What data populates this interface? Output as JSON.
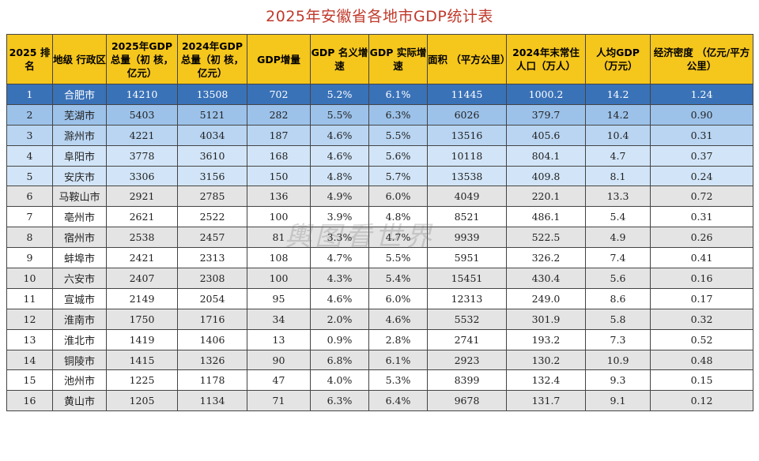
{
  "title": "2025年安徽省各地市GDP统计表",
  "watermark": "輿图看世界",
  "headers": [
    "2025 排名",
    "地级 行政区",
    "2025年GDP 总量（初 核，亿元）",
    "2024年GDP 总量（初 核，亿元）",
    "GDP增量",
    "GDP 名义增速",
    "GDP 实际增速",
    "面积 （平方公里）",
    "2024年末常住 人口（万人）",
    "人均GDP （万元）",
    "经济密度 （亿元/平方公里）"
  ],
  "rows": [
    {
      "rank": "1",
      "city": "合肥市",
      "gdp2025": "14210",
      "gdp2024": "13508",
      "increase": "702",
      "nominal": "5.2%",
      "real": "6.1%",
      "area": "11445",
      "population": "1000.2",
      "per_capita": "14.2",
      "density": "1.24"
    },
    {
      "rank": "2",
      "city": "芜湖市",
      "gdp2025": "5403",
      "gdp2024": "5121",
      "increase": "282",
      "nominal": "5.5%",
      "real": "6.3%",
      "area": "6026",
      "population": "379.7",
      "per_capita": "14.2",
      "density": "0.90"
    },
    {
      "rank": "3",
      "city": "滁州市",
      "gdp2025": "4221",
      "gdp2024": "4034",
      "increase": "187",
      "nominal": "4.6%",
      "real": "5.5%",
      "area": "13516",
      "population": "405.6",
      "per_capita": "10.4",
      "density": "0.31"
    },
    {
      "rank": "4",
      "city": "阜阳市",
      "gdp2025": "3778",
      "gdp2024": "3610",
      "increase": "168",
      "nominal": "4.6%",
      "real": "5.6%",
      "area": "10118",
      "population": "804.1",
      "per_capita": "4.7",
      "density": "0.37"
    },
    {
      "rank": "5",
      "city": "安庆市",
      "gdp2025": "3306",
      "gdp2024": "3156",
      "increase": "150",
      "nominal": "4.8%",
      "real": "5.7%",
      "area": "13538",
      "population": "409.8",
      "per_capita": "8.1",
      "density": "0.24"
    },
    {
      "rank": "6",
      "city": "马鞍山市",
      "gdp2025": "2921",
      "gdp2024": "2785",
      "increase": "136",
      "nominal": "4.9%",
      "real": "6.0%",
      "area": "4049",
      "population": "220.1",
      "per_capita": "13.3",
      "density": "0.72"
    },
    {
      "rank": "7",
      "city": "亳州市",
      "gdp2025": "2621",
      "gdp2024": "2522",
      "increase": "100",
      "nominal": "3.9%",
      "real": "4.8%",
      "area": "8521",
      "population": "486.1",
      "per_capita": "5.4",
      "density": "0.31"
    },
    {
      "rank": "8",
      "city": "宿州市",
      "gdp2025": "2538",
      "gdp2024": "2457",
      "increase": "81",
      "nominal": "3.3%",
      "real": "4.7%",
      "area": "9939",
      "population": "522.5",
      "per_capita": "4.9",
      "density": "0.26"
    },
    {
      "rank": "9",
      "city": "蚌埠市",
      "gdp2025": "2421",
      "gdp2024": "2313",
      "increase": "108",
      "nominal": "4.7%",
      "real": "5.5%",
      "area": "5951",
      "population": "326.2",
      "per_capita": "7.4",
      "density": "0.41"
    },
    {
      "rank": "10",
      "city": "六安市",
      "gdp2025": "2407",
      "gdp2024": "2308",
      "increase": "100",
      "nominal": "4.3%",
      "real": "5.4%",
      "area": "15451",
      "population": "430.4",
      "per_capita": "5.6",
      "density": "0.16"
    },
    {
      "rank": "11",
      "city": "宣城市",
      "gdp2025": "2149",
      "gdp2024": "2054",
      "increase": "95",
      "nominal": "4.6%",
      "real": "6.0%",
      "area": "12313",
      "population": "249.0",
      "per_capita": "8.6",
      "density": "0.17"
    },
    {
      "rank": "12",
      "city": "淮南市",
      "gdp2025": "1750",
      "gdp2024": "1716",
      "increase": "34",
      "nominal": "2.0%",
      "real": "4.6%",
      "area": "5532",
      "population": "301.9",
      "per_capita": "5.8",
      "density": "0.32"
    },
    {
      "rank": "13",
      "city": "淮北市",
      "gdp2025": "1419",
      "gdp2024": "1406",
      "increase": "13",
      "nominal": "0.9%",
      "real": "2.8%",
      "area": "2741",
      "population": "193.2",
      "per_capita": "7.3",
      "density": "0.52"
    },
    {
      "rank": "14",
      "city": "铜陵市",
      "gdp2025": "1415",
      "gdp2024": "1326",
      "increase": "90",
      "nominal": "6.8%",
      "real": "6.1%",
      "area": "2923",
      "population": "130.2",
      "per_capita": "10.9",
      "density": "0.48"
    },
    {
      "rank": "15",
      "city": "池州市",
      "gdp2025": "1225",
      "gdp2024": "1178",
      "increase": "47",
      "nominal": "4.0%",
      "real": "5.3%",
      "area": "8399",
      "population": "132.4",
      "per_capita": "9.3",
      "density": "0.15"
    },
    {
      "rank": "16",
      "city": "黄山市",
      "gdp2025": "1205",
      "gdp2024": "1134",
      "increase": "71",
      "nominal": "6.3%",
      "real": "6.4%",
      "area": "9678",
      "population": "131.7",
      "per_capita": "9.1",
      "density": "0.12"
    }
  ],
  "colors": {
    "title": "#c0392b",
    "header_bg": "#f5c61c",
    "rank1_bg": "#3a72b8",
    "rank2_bg": "#9cc2ea",
    "rank3_bg": "#b9d5f2",
    "rank4_5_bg": "#d2e5f8",
    "grey_bg": "#e4e4e4"
  }
}
